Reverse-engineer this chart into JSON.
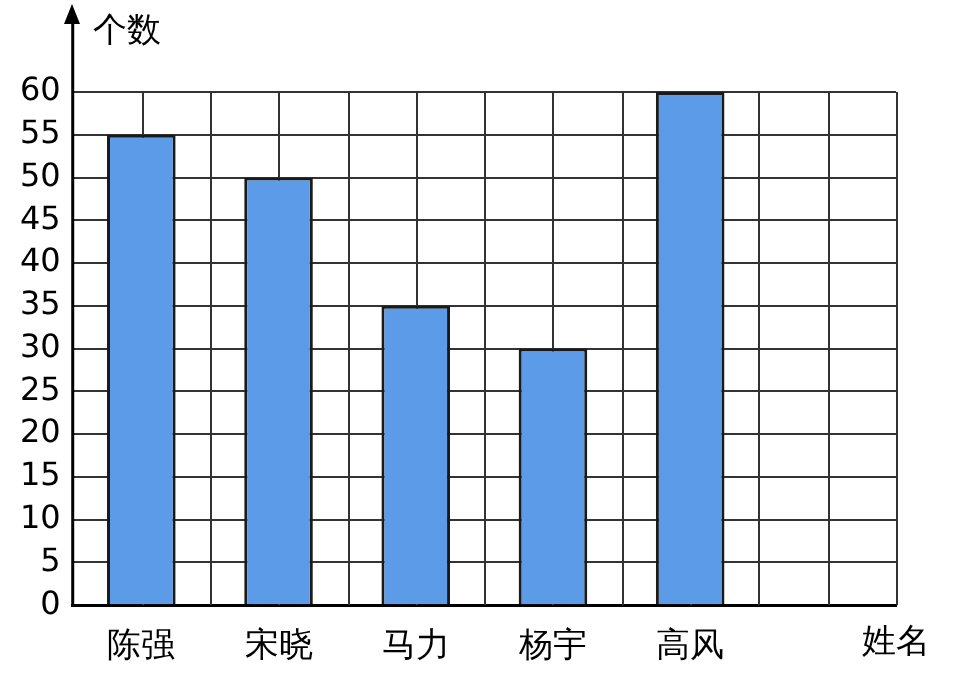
{
  "chart_data": {
    "type": "bar",
    "ylabel": "个数",
    "xlabel": "姓名",
    "categories": [
      "陈强",
      "宋晓",
      "马力",
      "杨宇",
      "高风",
      null
    ],
    "values": [
      55,
      50,
      35,
      30,
      60,
      null
    ],
    "color": "#5b9be8",
    "ylim": [
      0,
      60
    ],
    "yticks": [
      0,
      5,
      10,
      15,
      20,
      25,
      30,
      35,
      40,
      45,
      50,
      55,
      60
    ],
    "grid": true,
    "legend": false
  }
}
